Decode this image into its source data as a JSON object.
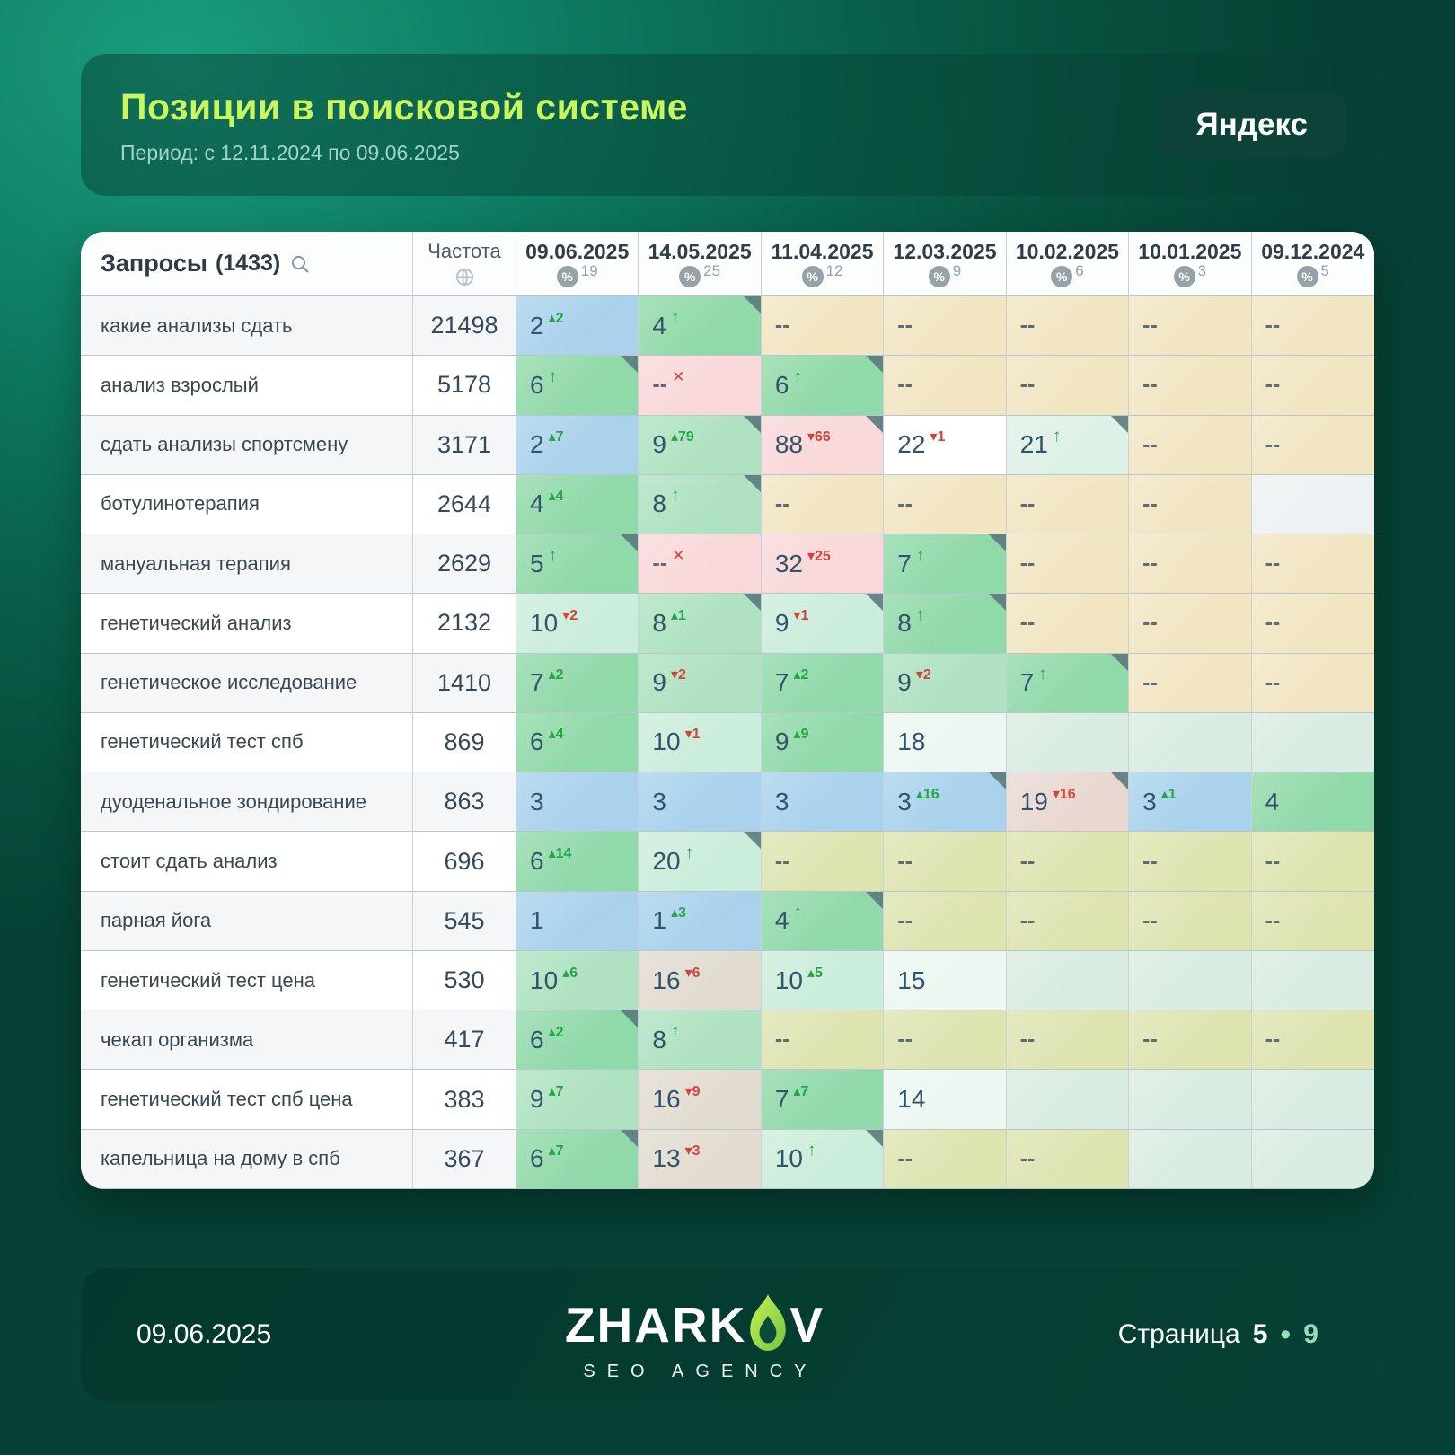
{
  "header": {
    "title": "Позиции в поисковой системе",
    "period": "Период: с 12.11.2024 по 09.06.2025",
    "engine_badge": "Яндекс"
  },
  "table": {
    "queries_label": "Запросы",
    "queries_count": "(1433)",
    "frequency_label": "Частота",
    "percent_symbol": "%",
    "columns": [
      {
        "date": "09.06.2025",
        "count": "19"
      },
      {
        "date": "14.05.2025",
        "count": "25"
      },
      {
        "date": "11.04.2025",
        "count": "12"
      },
      {
        "date": "12.03.2025",
        "count": "9"
      },
      {
        "date": "10.02.2025",
        "count": "6"
      },
      {
        "date": "10.01.2025",
        "count": "3"
      },
      {
        "date": "09.12.2024",
        "count": "5"
      }
    ],
    "rows": [
      {
        "query": "какие анализы сдать",
        "frequency": "21498",
        "cells": [
          {
            "v": "2",
            "d": "2",
            "t": "up",
            "bg": "blue"
          },
          {
            "v": "4",
            "t": "arrow",
            "bg": "green",
            "c": 1
          },
          {
            "t": "dash",
            "bg": "beige"
          },
          {
            "t": "dash",
            "bg": "beige"
          },
          {
            "t": "dash",
            "bg": "beige"
          },
          {
            "t": "dash",
            "bg": "beige"
          },
          {
            "t": "dash",
            "bg": "beige"
          }
        ]
      },
      {
        "query": "анализ взрослый",
        "frequency": "5178",
        "cells": [
          {
            "v": "6",
            "t": "arrow",
            "bg": "green",
            "c": 1
          },
          {
            "t": "x",
            "bg": "pink"
          },
          {
            "v": "6",
            "t": "arrow",
            "bg": "green",
            "c": 1
          },
          {
            "t": "dash",
            "bg": "beige"
          },
          {
            "t": "dash",
            "bg": "beige"
          },
          {
            "t": "dash",
            "bg": "beige"
          },
          {
            "t": "dash",
            "bg": "beige"
          }
        ]
      },
      {
        "query": "сдать анализы спортсмену",
        "frequency": "3171",
        "cells": [
          {
            "v": "2",
            "d": "7",
            "t": "up",
            "bg": "blue"
          },
          {
            "v": "9",
            "d": "79",
            "t": "up",
            "bg": "green2",
            "c": 1
          },
          {
            "v": "88",
            "d": "66",
            "t": "down",
            "bg": "pink",
            "c": 1
          },
          {
            "v": "22",
            "d": "1",
            "t": "down",
            "bg": "white"
          },
          {
            "v": "21",
            "t": "arrow",
            "bg": "mintpale",
            "c": 1
          },
          {
            "t": "dash",
            "bg": "beige"
          },
          {
            "t": "dash",
            "bg": "beige"
          }
        ]
      },
      {
        "query": "ботулинотерапия",
        "frequency": "2644",
        "cells": [
          {
            "v": "4",
            "d": "4",
            "t": "up",
            "bg": "green"
          },
          {
            "v": "8",
            "t": "arrow",
            "bg": "green2",
            "c": 1
          },
          {
            "t": "dash",
            "bg": "beige"
          },
          {
            "t": "dash",
            "bg": "beige"
          },
          {
            "t": "dash",
            "bg": "beige"
          },
          {
            "t": "dash",
            "bg": "beige"
          },
          {
            "t": "blank",
            "bg": "grayblank"
          }
        ]
      },
      {
        "query": "мануальная терапия",
        "frequency": "2629",
        "cells": [
          {
            "v": "5",
            "t": "arrow",
            "bg": "green",
            "c": 1
          },
          {
            "t": "x",
            "bg": "pink"
          },
          {
            "v": "32",
            "d": "25",
            "t": "down",
            "bg": "pink"
          },
          {
            "v": "7",
            "t": "arrow",
            "bg": "green",
            "c": 1
          },
          {
            "t": "dash",
            "bg": "beige"
          },
          {
            "t": "dash",
            "bg": "beige"
          },
          {
            "t": "dash",
            "bg": "beige"
          }
        ]
      },
      {
        "query": "генетический анализ",
        "frequency": "2132",
        "cells": [
          {
            "v": "10",
            "d": "2",
            "t": "down",
            "bg": "mint"
          },
          {
            "v": "8",
            "d": "1",
            "t": "up",
            "bg": "green2",
            "c": 1
          },
          {
            "v": "9",
            "d": "1",
            "t": "down",
            "bg": "mint",
            "c": 1
          },
          {
            "v": "8",
            "t": "arrow",
            "bg": "green",
            "c": 1
          },
          {
            "t": "dash",
            "bg": "beige"
          },
          {
            "t": "dash",
            "bg": "beige"
          },
          {
            "t": "dash",
            "bg": "beige"
          }
        ]
      },
      {
        "query": "генетическое исследование",
        "frequency": "1410",
        "cells": [
          {
            "v": "7",
            "d": "2",
            "t": "up",
            "bg": "green"
          },
          {
            "v": "9",
            "d": "2",
            "t": "down",
            "bg": "green2"
          },
          {
            "v": "7",
            "d": "2",
            "t": "up",
            "bg": "green"
          },
          {
            "v": "9",
            "d": "2",
            "t": "down",
            "bg": "green2"
          },
          {
            "v": "7",
            "t": "arrow",
            "bg": "green",
            "c": 1
          },
          {
            "t": "dash",
            "bg": "beige"
          },
          {
            "t": "dash",
            "bg": "beige"
          }
        ]
      },
      {
        "query": "генетический тест спб",
        "frequency": "869",
        "cells": [
          {
            "v": "6",
            "d": "4",
            "t": "up",
            "bg": "green"
          },
          {
            "v": "10",
            "d": "1",
            "t": "down",
            "bg": "mint"
          },
          {
            "v": "9",
            "d": "9",
            "t": "up",
            "bg": "green"
          },
          {
            "v": "18",
            "t": "plain",
            "bg": "palegreen"
          },
          {
            "t": "blank",
            "bg": "mintblank"
          },
          {
            "t": "blank",
            "bg": "mintblank"
          },
          {
            "t": "blank",
            "bg": "mintblank"
          }
        ]
      },
      {
        "query": "дуоденальное зондирование",
        "frequency": "863",
        "cells": [
          {
            "v": "3",
            "t": "plain",
            "bg": "blue"
          },
          {
            "v": "3",
            "t": "plain",
            "bg": "blue"
          },
          {
            "v": "3",
            "t": "plain",
            "bg": "blue"
          },
          {
            "v": "3",
            "d": "16",
            "t": "up",
            "bg": "blue",
            "c": 1
          },
          {
            "v": "19",
            "d": "16",
            "t": "down",
            "bg": "rose",
            "c": 1
          },
          {
            "v": "3",
            "d": "1",
            "t": "up",
            "bg": "blue"
          },
          {
            "v": "4",
            "t": "plain",
            "bg": "green"
          }
        ]
      },
      {
        "query": "стоит сдать анализ",
        "frequency": "696",
        "cells": [
          {
            "v": "6",
            "d": "14",
            "t": "up",
            "bg": "green"
          },
          {
            "v": "20",
            "t": "arrow",
            "bg": "mint",
            "c": 1
          },
          {
            "t": "dash",
            "bg": "olive"
          },
          {
            "t": "dash",
            "bg": "olive"
          },
          {
            "t": "dash",
            "bg": "olive"
          },
          {
            "t": "dash",
            "bg": "olive"
          },
          {
            "t": "dash",
            "bg": "olive"
          }
        ]
      },
      {
        "query": "парная йога",
        "frequency": "545",
        "cells": [
          {
            "v": "1",
            "t": "plain",
            "bg": "blue"
          },
          {
            "v": "1",
            "d": "3",
            "t": "up",
            "bg": "blue"
          },
          {
            "v": "4",
            "t": "arrow",
            "bg": "green",
            "c": 1
          },
          {
            "t": "dash",
            "bg": "olive"
          },
          {
            "t": "dash",
            "bg": "olive"
          },
          {
            "t": "dash",
            "bg": "olive"
          },
          {
            "t": "dash",
            "bg": "olive"
          }
        ]
      },
      {
        "query": "генетический тест цена",
        "frequency": "530",
        "cells": [
          {
            "v": "10",
            "d": "6",
            "t": "up",
            "bg": "green2"
          },
          {
            "v": "16",
            "d": "6",
            "t": "down",
            "bg": "tan"
          },
          {
            "v": "10",
            "d": "5",
            "t": "up",
            "bg": "mint"
          },
          {
            "v": "15",
            "t": "plain",
            "bg": "palegreen"
          },
          {
            "t": "blank",
            "bg": "mintblank"
          },
          {
            "t": "blank",
            "bg": "mintblank"
          },
          {
            "t": "blank",
            "bg": "mintblank"
          }
        ]
      },
      {
        "query": "чекап организма",
        "frequency": "417",
        "cells": [
          {
            "v": "6",
            "d": "2",
            "t": "up",
            "bg": "green",
            "c": 1
          },
          {
            "v": "8",
            "t": "arrow",
            "bg": "green2"
          },
          {
            "t": "dash",
            "bg": "olive"
          },
          {
            "t": "dash",
            "bg": "olive"
          },
          {
            "t": "dash",
            "bg": "olive"
          },
          {
            "t": "dash",
            "bg": "olive"
          },
          {
            "t": "dash",
            "bg": "olive"
          }
        ]
      },
      {
        "query": "генетический тест спб цена",
        "frequency": "383",
        "cells": [
          {
            "v": "9",
            "d": "7",
            "t": "up",
            "bg": "green2"
          },
          {
            "v": "16",
            "d": "9",
            "t": "down",
            "bg": "tan"
          },
          {
            "v": "7",
            "d": "7",
            "t": "up",
            "bg": "green"
          },
          {
            "v": "14",
            "t": "plain",
            "bg": "palegreen"
          },
          {
            "t": "blank",
            "bg": "mintblank"
          },
          {
            "t": "blank",
            "bg": "mintblank"
          },
          {
            "t": "blank",
            "bg": "mintblank"
          }
        ]
      },
      {
        "query": "капельница на дому в спб",
        "frequency": "367",
        "cells": [
          {
            "v": "6",
            "d": "7",
            "t": "up",
            "bg": "green",
            "c": 1
          },
          {
            "v": "13",
            "d": "3",
            "t": "down",
            "bg": "tan"
          },
          {
            "v": "10",
            "t": "arrow",
            "bg": "mint",
            "c": 1
          },
          {
            "t": "dash",
            "bg": "olive"
          },
          {
            "t": "dash",
            "bg": "olive"
          },
          {
            "t": "blank",
            "bg": "mintblank"
          },
          {
            "t": "blank",
            "bg": "mintblank"
          }
        ]
      }
    ]
  },
  "footer": {
    "date": "09.06.2025",
    "logo_left": "ZHARK",
    "logo_right": "V",
    "logo_sub": "SEO AGENCY",
    "page_label": "Страница",
    "page_current": "5",
    "page_sep": "•",
    "page_total": "9"
  },
  "colors": {
    "title": "#c9f55f",
    "badge_bg": "#0c4237",
    "delta_up": "#27a447",
    "delta_down": "#d4443c",
    "page_dot": "#8fe3c0",
    "page_total": "#93dcc0",
    "cell_bg": {
      "blue": "#a9d2ec",
      "green": "#90d9a9",
      "green2": "#aee2c0",
      "mint": "#cbeddb",
      "mintpale": "#def1e7",
      "palegreen": "#ecf7f1",
      "mintblank": "#d8ece1",
      "pink": "#f9d8d9",
      "rose": "#e9d8d2",
      "tan": "#e2dcd0",
      "beige": "#f1e5c2",
      "olive": "#dde4b0",
      "white": "#ffffff",
      "grayblank": "#eef1f3"
    },
    "row_odd": "#f5f6f8",
    "row_even": "#ffffff"
  }
}
